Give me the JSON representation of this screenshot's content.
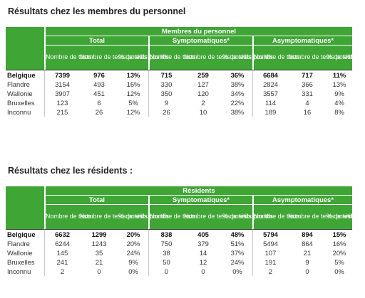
{
  "sections": [
    {
      "title": "Résultats chez les membres du personnel",
      "main_header": "Membres du personnel",
      "groups": [
        "Total",
        "Symptomatiques*",
        "Asymptomatiques*"
      ],
      "subheaders": [
        "Nombre de tests",
        "Nombre de tests positifs",
        "% de tests positifs"
      ],
      "rows": [
        {
          "label": "Belgique",
          "values": [
            "7399",
            "976",
            "13%",
            "715",
            "259",
            "36%",
            "6684",
            "717",
            "11%"
          ]
        },
        {
          "label": "Flandre",
          "values": [
            "3154",
            "493",
            "16%",
            "330",
            "127",
            "38%",
            "2824",
            "366",
            "13%"
          ]
        },
        {
          "label": "Wallonie",
          "values": [
            "3907",
            "451",
            "12%",
            "350",
            "120",
            "34%",
            "3557",
            "331",
            "9%"
          ]
        },
        {
          "label": "Bruxelles",
          "values": [
            "123",
            "6",
            "5%",
            "9",
            "2",
            "22%",
            "114",
            "4",
            "4%"
          ]
        },
        {
          "label": "Inconnu",
          "values": [
            "215",
            "26",
            "12%",
            "26",
            "10",
            "38%",
            "189",
            "16",
            "8%"
          ]
        }
      ]
    },
    {
      "title": "Résultats chez les résidents :",
      "main_header": "Résidents",
      "groups": [
        "Total",
        "Symptomatiques*",
        "Asymptomatiques*"
      ],
      "subheaders": [
        "Nombre de tests",
        "Nombre de tests positifs",
        "% de tests positifs"
      ],
      "rows": [
        {
          "label": "Belgique",
          "values": [
            "6632",
            "1299",
            "20%",
            "838",
            "405",
            "48%",
            "5794",
            "894",
            "15%"
          ]
        },
        {
          "label": "Flandre",
          "values": [
            "6244",
            "1243",
            "20%",
            "750",
            "379",
            "51%",
            "5494",
            "864",
            "16%"
          ]
        },
        {
          "label": "Wallonie",
          "values": [
            "145",
            "35",
            "24%",
            "38",
            "14",
            "37%",
            "107",
            "21",
            "20%"
          ]
        },
        {
          "label": "Bruxelles",
          "values": [
            "241",
            "21",
            "9%",
            "50",
            "12",
            "24%",
            "191",
            "9",
            "5%"
          ]
        },
        {
          "label": "Inconnu",
          "values": [
            "2",
            "0",
            "0%",
            "0",
            "0",
            "0%",
            "2",
            "0",
            "0%"
          ]
        }
      ]
    }
  ],
  "colors": {
    "header_green": "#3fa535",
    "header_text": "#ffffff"
  }
}
